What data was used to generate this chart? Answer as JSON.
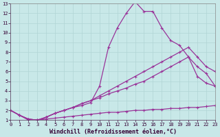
{
  "xlabel": "Windchill (Refroidissement éolien,°C)",
  "ylabel": "",
  "background_color": "#c8e8e8",
  "line_color": "#993399",
  "grid_color": "#b0d4d4",
  "xlim": [
    0,
    23
  ],
  "ylim": [
    1,
    13
  ],
  "xticks": [
    0,
    1,
    2,
    3,
    4,
    5,
    6,
    7,
    8,
    9,
    10,
    11,
    12,
    13,
    14,
    15,
    16,
    17,
    18,
    19,
    20,
    21,
    22,
    23
  ],
  "yticks": [
    1,
    2,
    3,
    4,
    5,
    6,
    7,
    8,
    9,
    10,
    11,
    12,
    13
  ],
  "line1_x": [
    0,
    1,
    2,
    3,
    4,
    5,
    6,
    7,
    8,
    9,
    10,
    11,
    12,
    13,
    14,
    15,
    16,
    17,
    18,
    19,
    20,
    21,
    22,
    23
  ],
  "line1_y": [
    2.0,
    1.5,
    1.0,
    0.8,
    1.3,
    1.7,
    2.0,
    2.3,
    2.5,
    2.8,
    4.5,
    8.5,
    10.5,
    12.0,
    13.2,
    12.2,
    12.2,
    10.5,
    9.2,
    8.7,
    7.5,
    6.5,
    5.8,
    4.5
  ],
  "line2_x": [
    0,
    1,
    2,
    3,
    4,
    5,
    6,
    7,
    8,
    9,
    10,
    11,
    12,
    13,
    14,
    15,
    16,
    17,
    18,
    19,
    20,
    21,
    22,
    23
  ],
  "line2_y": [
    2.0,
    1.5,
    1.1,
    1.0,
    1.3,
    1.7,
    2.0,
    2.3,
    2.7,
    3.0,
    3.5,
    4.0,
    4.5,
    5.0,
    5.5,
    6.0,
    6.5,
    7.0,
    7.5,
    8.0,
    8.5,
    7.5,
    6.5,
    6.0
  ],
  "line3_x": [
    0,
    1,
    2,
    3,
    4,
    5,
    6,
    7,
    8,
    9,
    10,
    11,
    12,
    13,
    14,
    15,
    16,
    17,
    18,
    19,
    20,
    21,
    22,
    23
  ],
  "line3_y": [
    2.0,
    1.5,
    1.1,
    1.0,
    1.3,
    1.7,
    2.0,
    2.3,
    2.7,
    3.0,
    3.3,
    3.7,
    4.0,
    4.3,
    4.7,
    5.0,
    5.5,
    6.0,
    6.5,
    7.0,
    7.5,
    5.5,
    4.8,
    4.5
  ],
  "line4_x": [
    0,
    1,
    2,
    3,
    4,
    5,
    6,
    7,
    8,
    9,
    10,
    11,
    12,
    13,
    14,
    15,
    16,
    17,
    18,
    19,
    20,
    21,
    22,
    23
  ],
  "line4_y": [
    2.0,
    1.5,
    1.1,
    1.0,
    1.1,
    1.2,
    1.3,
    1.4,
    1.5,
    1.6,
    1.7,
    1.8,
    1.8,
    1.9,
    2.0,
    2.0,
    2.1,
    2.1,
    2.2,
    2.2,
    2.3,
    2.3,
    2.4,
    2.5
  ],
  "marker": "+",
  "markersize": 3,
  "linewidth": 0.9,
  "tick_fontsize": 5.0,
  "label_fontsize": 6.0
}
